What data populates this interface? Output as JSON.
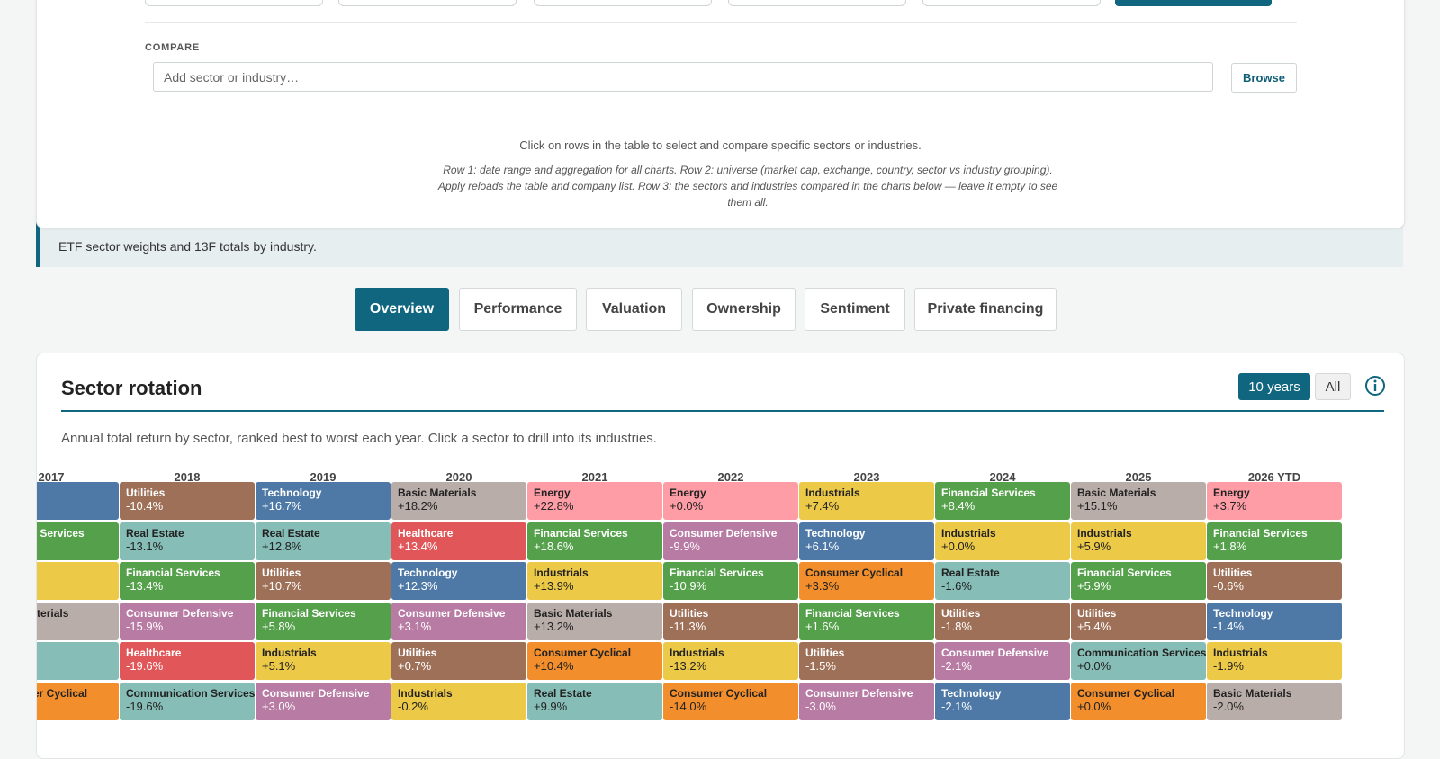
{
  "compare": {
    "label": "COMPARE",
    "placeholder": "Add sector or industry…",
    "browse_label": "Browse",
    "hint": "Click on rows in the table to select and compare specific sectors or industries.",
    "help": "Row 1: date range and aggregation for all charts. Row 2: universe (market cap, exchange, country, sector vs industry grouping). Apply reloads the table and company list. Row 3: the sectors and industries compared in the charts below — leave it empty to see them all."
  },
  "notice": {
    "text": "ETF sector weights and 13F totals by industry."
  },
  "tabs": [
    {
      "label": "Overview",
      "active": true
    },
    {
      "label": "Performance",
      "active": false
    },
    {
      "label": "Valuation",
      "active": false
    },
    {
      "label": "Ownership",
      "active": false
    },
    {
      "label": "Sentiment",
      "active": false
    },
    {
      "label": "Private financing",
      "active": false
    }
  ],
  "rotation": {
    "title": "Sector rotation",
    "range_options": [
      "10 years",
      "All"
    ],
    "selected_range": "10 years",
    "subtitle": "Annual total return by sector, ranked best to worst each year. Click a sector to drill into its industries.",
    "sector_colors": {
      "Utilities": "#9e7058",
      "Real Estate": "#86bdb6",
      "Financial Services": "#55a14b",
      "Consumer Defensive": "#b87ba4",
      "Healthcare": "#e15759",
      "Communication Services": "#86bdb6",
      "Technology": "#4e79a7",
      "Basic Materials": "#b9ada9",
      "Energy": "#ff9da6",
      "Industrials": "#edc948",
      "Consumer Cyclical": "#f28e2c"
    },
    "years": [
      {
        "year": "2017",
        "cells": [
          {
            "sector": "",
            "ret": "",
            "color": "#4e79a7",
            "dark": false
          },
          {
            "sector": "Financial Services",
            "ret": "",
            "color": "#55a14b",
            "dark": false
          },
          {
            "sector": "",
            "ret": "",
            "color": "#edc948",
            "dark": true
          },
          {
            "sector": "Basic Materials",
            "ret": "",
            "color": "#b9ada9",
            "dark": true
          },
          {
            "sector": "",
            "ret": "",
            "color": "#86bdb6",
            "dark": true
          },
          {
            "sector": "Consumer Cyclical",
            "ret": "",
            "color": "#f28e2c",
            "dark": true
          }
        ]
      },
      {
        "year": "2018",
        "cells": [
          {
            "sector": "Utilities",
            "ret": "-10.4%",
            "color": "#9e7058",
            "dark": false
          },
          {
            "sector": "Real Estate",
            "ret": "-13.1%",
            "color": "#86bdb6",
            "dark": true
          },
          {
            "sector": "Financial Services",
            "ret": "-13.4%",
            "color": "#55a14b",
            "dark": false
          },
          {
            "sector": "Consumer Defensive",
            "ret": "-15.9%",
            "color": "#b87ba4",
            "dark": false
          },
          {
            "sector": "Healthcare",
            "ret": "-19.6%",
            "color": "#e15759",
            "dark": false
          },
          {
            "sector": "Communication Services",
            "ret": "-19.6%",
            "color": "#86bdb6",
            "dark": true
          }
        ]
      },
      {
        "year": "2019",
        "cells": [
          {
            "sector": "Technology",
            "ret": "+16.7%",
            "color": "#4e79a7",
            "dark": false
          },
          {
            "sector": "Real Estate",
            "ret": "+12.8%",
            "color": "#86bdb6",
            "dark": true
          },
          {
            "sector": "Utilities",
            "ret": "+10.7%",
            "color": "#9e7058",
            "dark": false
          },
          {
            "sector": "Financial Services",
            "ret": "+5.8%",
            "color": "#55a14b",
            "dark": false
          },
          {
            "sector": "Industrials",
            "ret": "+5.1%",
            "color": "#edc948",
            "dark": true
          },
          {
            "sector": "Consumer Defensive",
            "ret": "+3.0%",
            "color": "#b87ba4",
            "dark": false
          }
        ]
      },
      {
        "year": "2020",
        "cells": [
          {
            "sector": "Basic Materials",
            "ret": "+18.2%",
            "color": "#b9ada9",
            "dark": true
          },
          {
            "sector": "Healthcare",
            "ret": "+13.4%",
            "color": "#e15759",
            "dark": false
          },
          {
            "sector": "Technology",
            "ret": "+12.3%",
            "color": "#4e79a7",
            "dark": false
          },
          {
            "sector": "Consumer Defensive",
            "ret": "+3.1%",
            "color": "#b87ba4",
            "dark": false
          },
          {
            "sector": "Utilities",
            "ret": "+0.7%",
            "color": "#9e7058",
            "dark": false
          },
          {
            "sector": "Industrials",
            "ret": "-0.2%",
            "color": "#edc948",
            "dark": true
          }
        ]
      },
      {
        "year": "2021",
        "cells": [
          {
            "sector": "Energy",
            "ret": "+22.8%",
            "color": "#ff9da6",
            "dark": true
          },
          {
            "sector": "Financial Services",
            "ret": "+18.6%",
            "color": "#55a14b",
            "dark": false
          },
          {
            "sector": "Industrials",
            "ret": "+13.9%",
            "color": "#edc948",
            "dark": true
          },
          {
            "sector": "Basic Materials",
            "ret": "+13.2%",
            "color": "#b9ada9",
            "dark": true
          },
          {
            "sector": "Consumer Cyclical",
            "ret": "+10.4%",
            "color": "#f28e2c",
            "dark": true
          },
          {
            "sector": "Real Estate",
            "ret": "+9.9%",
            "color": "#86bdb6",
            "dark": true
          }
        ]
      },
      {
        "year": "2022",
        "cells": [
          {
            "sector": "Energy",
            "ret": "+0.0%",
            "color": "#ff9da6",
            "dark": true
          },
          {
            "sector": "Consumer Defensive",
            "ret": "-9.9%",
            "color": "#b87ba4",
            "dark": false
          },
          {
            "sector": "Financial Services",
            "ret": "-10.9%",
            "color": "#55a14b",
            "dark": false
          },
          {
            "sector": "Utilities",
            "ret": "-11.3%",
            "color": "#9e7058",
            "dark": false
          },
          {
            "sector": "Industrials",
            "ret": "-13.2%",
            "color": "#edc948",
            "dark": true
          },
          {
            "sector": "Consumer Cyclical",
            "ret": "-14.0%",
            "color": "#f28e2c",
            "dark": true
          }
        ]
      },
      {
        "year": "2023",
        "cells": [
          {
            "sector": "Industrials",
            "ret": "+7.4%",
            "color": "#edc948",
            "dark": true
          },
          {
            "sector": "Technology",
            "ret": "+6.1%",
            "color": "#4e79a7",
            "dark": false
          },
          {
            "sector": "Consumer Cyclical",
            "ret": "+3.3%",
            "color": "#f28e2c",
            "dark": true
          },
          {
            "sector": "Financial Services",
            "ret": "+1.6%",
            "color": "#55a14b",
            "dark": false
          },
          {
            "sector": "Utilities",
            "ret": "-1.5%",
            "color": "#9e7058",
            "dark": false
          },
          {
            "sector": "Consumer Defensive",
            "ret": "-3.0%",
            "color": "#b87ba4",
            "dark": false
          }
        ]
      },
      {
        "year": "2024",
        "cells": [
          {
            "sector": "Financial Services",
            "ret": "+8.4%",
            "color": "#55a14b",
            "dark": false
          },
          {
            "sector": "Industrials",
            "ret": "+0.0%",
            "color": "#edc948",
            "dark": true
          },
          {
            "sector": "Real Estate",
            "ret": "-1.6%",
            "color": "#86bdb6",
            "dark": true
          },
          {
            "sector": "Utilities",
            "ret": "-1.8%",
            "color": "#9e7058",
            "dark": false
          },
          {
            "sector": "Consumer Defensive",
            "ret": "-2.1%",
            "color": "#b87ba4",
            "dark": false
          },
          {
            "sector": "Technology",
            "ret": "-2.1%",
            "color": "#4e79a7",
            "dark": false
          }
        ]
      },
      {
        "year": "2025",
        "cells": [
          {
            "sector": "Basic Materials",
            "ret": "+15.1%",
            "color": "#b9ada9",
            "dark": true
          },
          {
            "sector": "Industrials",
            "ret": "+5.9%",
            "color": "#edc948",
            "dark": true
          },
          {
            "sector": "Financial Services",
            "ret": "+5.9%",
            "color": "#55a14b",
            "dark": false
          },
          {
            "sector": "Utilities",
            "ret": "+5.4%",
            "color": "#9e7058",
            "dark": false
          },
          {
            "sector": "Communication Services",
            "ret": "+0.0%",
            "color": "#86bdb6",
            "dark": true
          },
          {
            "sector": "Consumer Cyclical",
            "ret": "+0.0%",
            "color": "#f28e2c",
            "dark": true
          }
        ]
      },
      {
        "year": "2026 YTD",
        "cells": [
          {
            "sector": "Energy",
            "ret": "+3.7%",
            "color": "#ff9da6",
            "dark": true
          },
          {
            "sector": "Financial Services",
            "ret": "+1.8%",
            "color": "#55a14b",
            "dark": false
          },
          {
            "sector": "Utilities",
            "ret": "-0.6%",
            "color": "#9e7058",
            "dark": false
          },
          {
            "sector": "Technology",
            "ret": "-1.4%",
            "color": "#4e79a7",
            "dark": false
          },
          {
            "sector": "Industrials",
            "ret": "-1.9%",
            "color": "#edc948",
            "dark": true
          },
          {
            "sector": "Basic Materials",
            "ret": "-2.0%",
            "color": "#b9ada9",
            "dark": true
          }
        ]
      }
    ]
  }
}
